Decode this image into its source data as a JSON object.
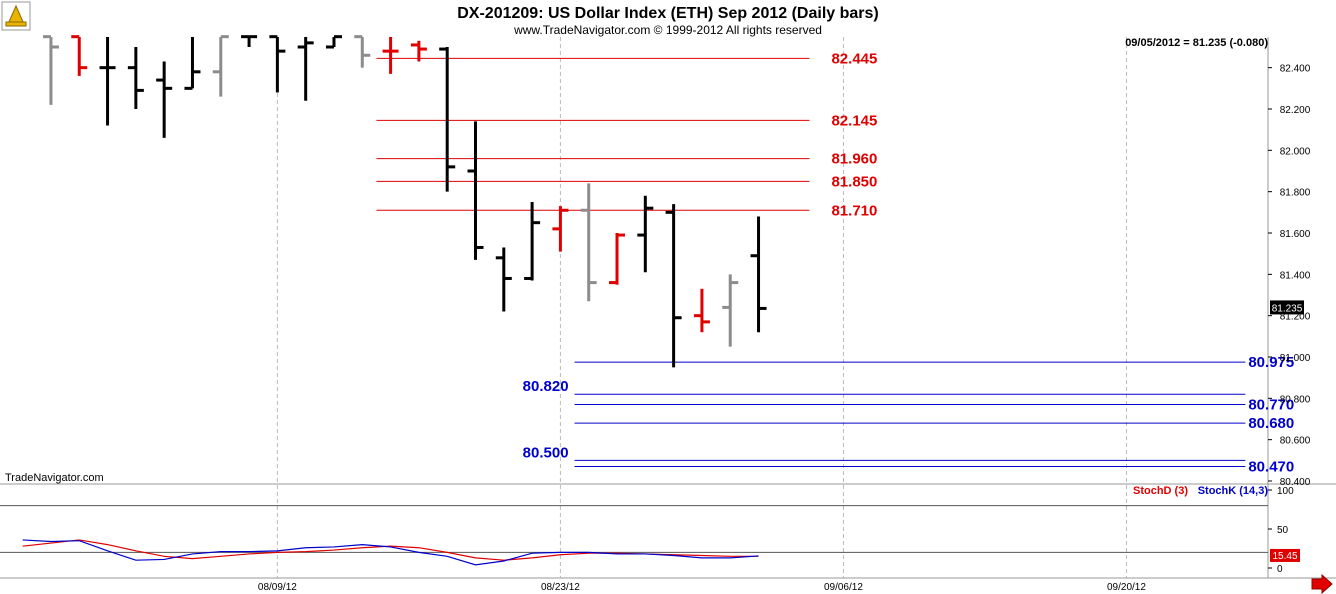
{
  "header": {
    "title": "DX-201209:  US Dollar Index (ETH) Sep 2012  (Daily bars)",
    "copyright": "www.TradeNavigator.com © 1999-2012 All rights reserved",
    "last_quote": "09/05/2012 = 81.235 (-0.080)",
    "watermark": "TradeNavigator.com"
  },
  "colors": {
    "up_bar": "#000000",
    "down_bar": "#e00000",
    "neutral_bar": "#8c8c8c",
    "resistance": "#e00000",
    "support": "#0000cc",
    "stoch_d": "#e00000",
    "stoch_k": "#0000cc",
    "grid": "#bbbbbb"
  },
  "chart_data": [
    {
      "type": "ohlc",
      "ylim": [
        80.4,
        82.5
      ],
      "y_ticks": [
        "82.400",
        "82.200",
        "82.000",
        "81.800",
        "81.600",
        "81.400",
        "81.200",
        "81.000",
        "80.800",
        "80.600",
        "80.400"
      ],
      "y_tick_values": [
        82.4,
        82.2,
        82.0,
        81.8,
        81.6,
        81.4,
        81.2,
        81.0,
        80.8,
        80.6,
        80.4
      ],
      "last_price_label": "81.235",
      "last_price": 81.235,
      "x_labels": [
        "08/09/12",
        "08/23/12",
        "09/06/12",
        "09/20/12"
      ],
      "x_label_index": [
        8,
        18,
        28,
        38
      ],
      "x_range": [
        -1.8,
        43.0
      ],
      "bars": [
        {
          "d": 0,
          "o": 82.55,
          "h": 82.56,
          "l": 82.22,
          "c": 82.5,
          "t": "neutral"
        },
        {
          "d": 1,
          "o": 82.55,
          "h": 82.55,
          "l": 82.36,
          "c": 82.4,
          "t": "down"
        },
        {
          "d": 2,
          "o": 82.4,
          "h": 82.55,
          "l": 82.12,
          "c": 82.4,
          "t": "up"
        },
        {
          "d": 3,
          "o": 82.4,
          "h": 82.5,
          "l": 82.2,
          "c": 82.29,
          "t": "up"
        },
        {
          "d": 4,
          "o": 82.34,
          "h": 82.43,
          "l": 82.06,
          "c": 82.3,
          "t": "up"
        },
        {
          "d": 5,
          "o": 82.3,
          "h": 82.55,
          "l": 82.3,
          "c": 82.38,
          "t": "up"
        },
        {
          "d": 6,
          "o": 82.38,
          "h": 82.55,
          "l": 82.26,
          "c": 82.55,
          "t": "neutral"
        },
        {
          "d": 7,
          "o": 82.55,
          "h": 82.55,
          "l": 82.5,
          "c": 82.55,
          "t": "up"
        },
        {
          "d": 8,
          "o": 82.55,
          "h": 82.55,
          "l": 82.28,
          "c": 82.48,
          "t": "up"
        },
        {
          "d": 9,
          "o": 82.5,
          "h": 82.55,
          "l": 82.24,
          "c": 82.52,
          "t": "up"
        },
        {
          "d": 10,
          "o": 82.5,
          "h": 82.55,
          "l": 82.5,
          "c": 82.55,
          "t": "up"
        },
        {
          "d": 11,
          "o": 82.55,
          "h": 82.55,
          "l": 82.4,
          "c": 82.46,
          "t": "neutral"
        },
        {
          "d": 12,
          "o": 82.48,
          "h": 82.55,
          "l": 82.37,
          "c": 82.48,
          "t": "down"
        },
        {
          "d": 13,
          "o": 82.51,
          "h": 82.53,
          "l": 82.43,
          "c": 82.49,
          "t": "down"
        },
        {
          "d": 14,
          "o": 82.49,
          "h": 82.5,
          "l": 81.8,
          "c": 81.92,
          "t": "up"
        },
        {
          "d": 15,
          "o": 81.9,
          "h": 82.14,
          "l": 81.47,
          "c": 81.53,
          "t": "up"
        },
        {
          "d": 16,
          "o": 81.48,
          "h": 81.53,
          "l": 81.22,
          "c": 81.38,
          "t": "up"
        },
        {
          "d": 17,
          "o": 81.38,
          "h": 81.75,
          "l": 81.37,
          "c": 81.65,
          "t": "up"
        },
        {
          "d": 18,
          "o": 81.62,
          "h": 81.73,
          "l": 81.51,
          "c": 81.71,
          "t": "down"
        },
        {
          "d": 19,
          "o": 81.71,
          "h": 81.84,
          "l": 81.27,
          "c": 81.36,
          "t": "neutral"
        },
        {
          "d": 20,
          "o": 81.36,
          "h": 81.6,
          "l": 81.35,
          "c": 81.59,
          "t": "down"
        },
        {
          "d": 21,
          "o": 81.59,
          "h": 81.78,
          "l": 81.41,
          "c": 81.72,
          "t": "up"
        },
        {
          "d": 22,
          "o": 81.7,
          "h": 81.74,
          "l": 80.95,
          "c": 81.19,
          "t": "up"
        },
        {
          "d": 23,
          "o": 81.2,
          "h": 81.33,
          "l": 81.12,
          "c": 81.17,
          "t": "down"
        },
        {
          "d": 24,
          "o": 81.24,
          "h": 81.4,
          "l": 81.05,
          "c": 81.36,
          "t": "neutral"
        },
        {
          "d": 25,
          "o": 81.49,
          "h": 81.68,
          "l": 81.12,
          "c": 81.235,
          "t": "up"
        }
      ],
      "resistance_levels": [
        {
          "value": 82.445,
          "label": "82.445",
          "from": 11.5,
          "to": 26.8
        },
        {
          "value": 82.145,
          "label": "82.145",
          "from": 11.5,
          "to": 26.8
        },
        {
          "value": 81.96,
          "label": "81.960",
          "from": 11.5,
          "to": 26.8
        },
        {
          "value": 81.85,
          "label": "81.850",
          "from": 11.5,
          "to": 26.8
        },
        {
          "value": 81.71,
          "label": "81.710",
          "from": 11.5,
          "to": 26.8
        }
      ],
      "support_levels": [
        {
          "value": 80.975,
          "label": "80.975",
          "from": 18.5,
          "to": 42.2,
          "label_side": "right"
        },
        {
          "value": 80.82,
          "label": "80.820",
          "from": 18.5,
          "to": 42.2,
          "label_side": "left"
        },
        {
          "value": 80.77,
          "label": "80.770",
          "from": 18.5,
          "to": 42.2,
          "label_side": "right"
        },
        {
          "value": 80.68,
          "label": "80.680",
          "from": 18.5,
          "to": 42.2,
          "label_side": "right"
        },
        {
          "value": 80.5,
          "label": "80.500",
          "from": 18.5,
          "to": 42.2,
          "label_side": "left"
        },
        {
          "value": 80.47,
          "label": "80.470",
          "from": 18.5,
          "to": 42.2,
          "label_side": "right"
        }
      ]
    },
    {
      "type": "line",
      "legend": [
        "StochD (3)",
        "StochK (14,3)"
      ],
      "legend_placement": "top-right",
      "ylim": [
        0,
        100
      ],
      "y_ticks": [
        "100",
        "50",
        "0"
      ],
      "y_tick_values": [
        100,
        50,
        0
      ],
      "reference_lines": [
        80,
        20
      ],
      "last_value_label": "15.45",
      "last_value": 15.45,
      "series": [
        {
          "name": "StochD (3)",
          "x": [
            -1,
            0,
            1,
            2,
            3,
            4,
            5,
            6,
            7,
            8,
            9,
            10,
            11,
            12,
            13,
            14,
            15,
            16,
            17,
            18,
            19,
            20,
            21,
            22,
            23,
            24,
            25
          ],
          "values": [
            28,
            32,
            36,
            30,
            22,
            15,
            12,
            15,
            18,
            20,
            21,
            23,
            26,
            28,
            26,
            20,
            13,
            10,
            13,
            17,
            19,
            19,
            18,
            17,
            16,
            15,
            15
          ]
        },
        {
          "name": "StochK (14,3)",
          "x": [
            -1,
            0,
            1,
            2,
            3,
            4,
            5,
            6,
            7,
            8,
            9,
            10,
            11,
            12,
            13,
            14,
            15,
            16,
            17,
            18,
            19,
            20,
            21,
            22,
            23,
            24,
            25
          ],
          "values": [
            36,
            34,
            35,
            22,
            10,
            11,
            18,
            21,
            21,
            22,
            26,
            27,
            30,
            27,
            20,
            15,
            4,
            9,
            19,
            20,
            20,
            18,
            18,
            16,
            13,
            13,
            15.45
          ]
        }
      ]
    }
  ]
}
